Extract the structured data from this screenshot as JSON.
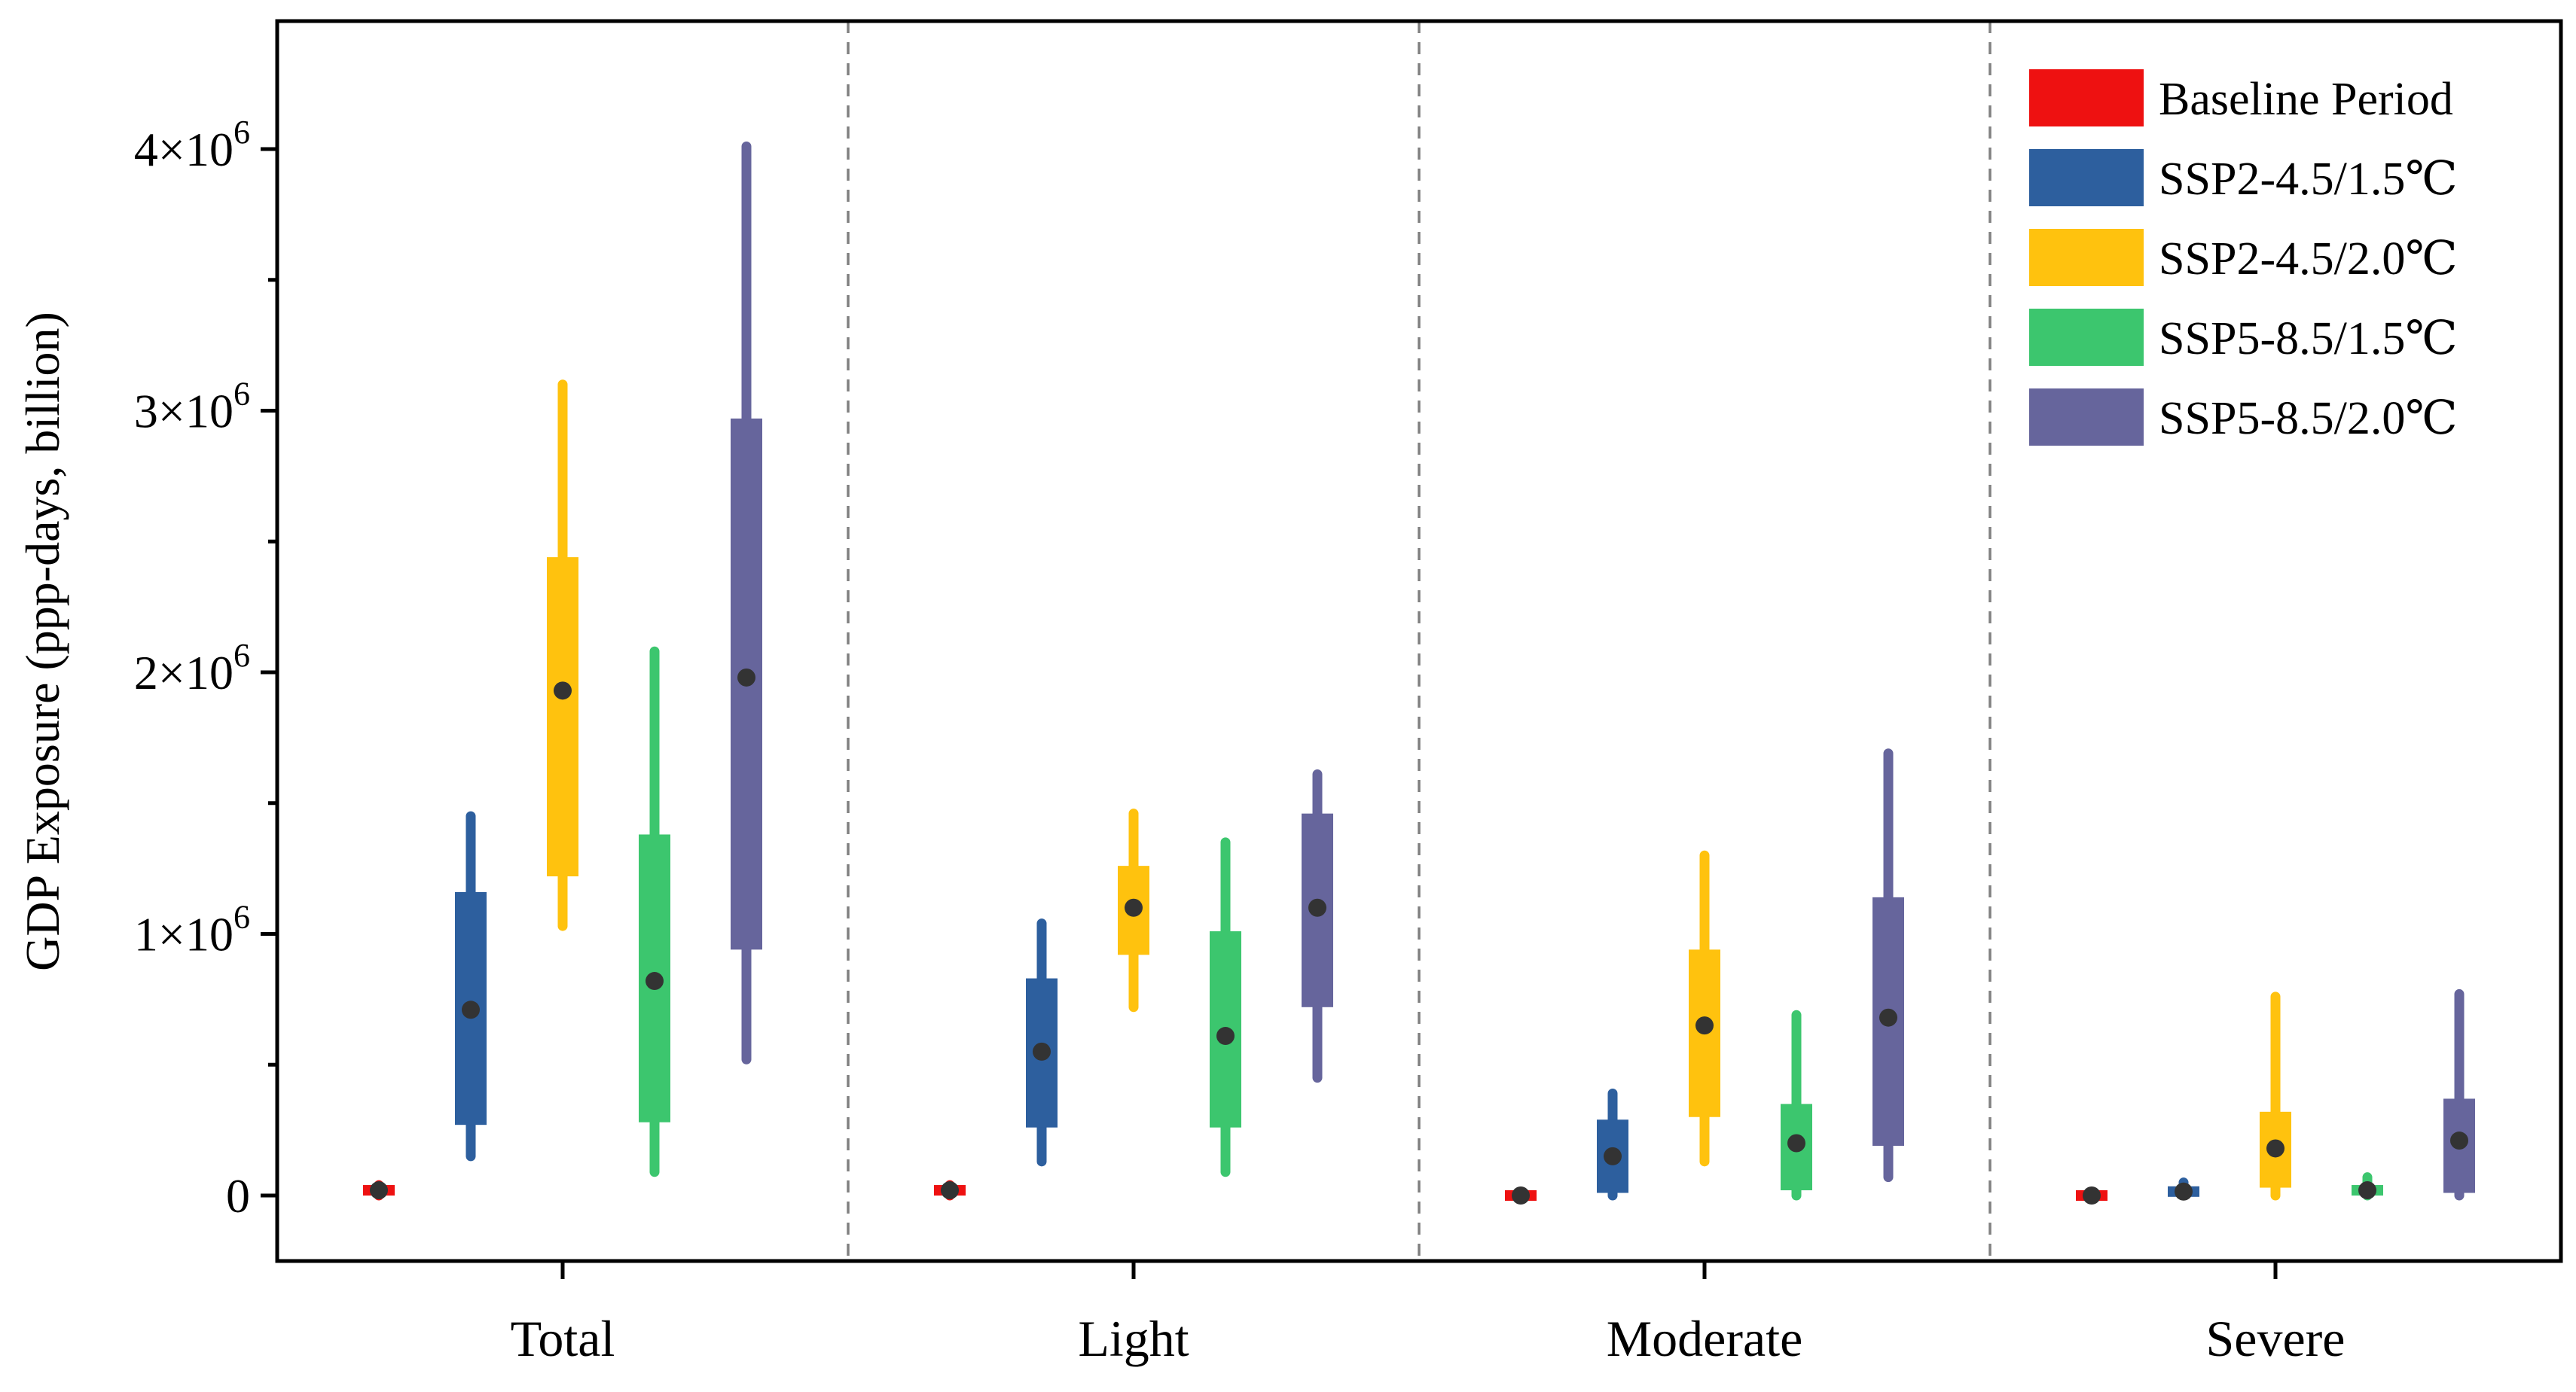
{
  "chart_data": {
    "type": "box",
    "ylabel": "GDP Exposure (ppp-days, billion)",
    "ylim": [
      -250000,
      4500000
    ],
    "yticks": [
      {
        "value": 0,
        "mantissa": "0",
        "exponent": ""
      },
      {
        "value": 1000000,
        "mantissa": "1×10",
        "exponent": "6"
      },
      {
        "value": 2000000,
        "mantissa": "2×10",
        "exponent": "6"
      },
      {
        "value": 3000000,
        "mantissa": "3×10",
        "exponent": "6"
      },
      {
        "value": 4000000,
        "mantissa": "4×10",
        "exponent": "6"
      }
    ],
    "categories": [
      "Total",
      "Light",
      "Moderate",
      "Severe"
    ],
    "legend_position": "top-right",
    "series": [
      {
        "name": "Baseline Period",
        "color": "#ee1111",
        "stats": [
          {
            "min": 0,
            "q1": 0,
            "median": 20000,
            "q3": 40000,
            "max": 40000
          },
          {
            "min": 0,
            "q1": 0,
            "median": 20000,
            "q3": 40000,
            "max": 40000
          },
          {
            "min": -5000,
            "q1": -5000,
            "median": 0,
            "q3": 5000,
            "max": 5000
          },
          {
            "min": -5000,
            "q1": -5000,
            "median": 0,
            "q3": 5000,
            "max": 5000
          }
        ]
      },
      {
        "name": "SSP2-4.5/1.5℃",
        "color": "#2d5f9e",
        "stats": [
          {
            "min": 150000,
            "q1": 270000,
            "median": 710000,
            "q3": 1160000,
            "max": 1450000
          },
          {
            "min": 130000,
            "q1": 260000,
            "median": 550000,
            "q3": 830000,
            "max": 1040000
          },
          {
            "min": 0,
            "q1": 10000,
            "median": 150000,
            "q3": 290000,
            "max": 390000
          },
          {
            "min": 0,
            "q1": 0,
            "median": 15000,
            "q3": 30000,
            "max": 50000
          }
        ]
      },
      {
        "name": "SSP2-4.5/2.0℃",
        "color": "#ffc20e",
        "stats": [
          {
            "min": 1030000,
            "q1": 1220000,
            "median": 1930000,
            "q3": 2440000,
            "max": 3100000
          },
          {
            "min": 720000,
            "q1": 920000,
            "median": 1100000,
            "q3": 1260000,
            "max": 1460000
          },
          {
            "min": 130000,
            "q1": 300000,
            "median": 650000,
            "q3": 940000,
            "max": 1300000
          },
          {
            "min": 0,
            "q1": 30000,
            "median": 180000,
            "q3": 320000,
            "max": 760000
          }
        ]
      },
      {
        "name": "SSP5-8.5/1.5℃",
        "color": "#3cc66e",
        "stats": [
          {
            "min": 90000,
            "q1": 280000,
            "median": 820000,
            "q3": 1380000,
            "max": 2080000
          },
          {
            "min": 90000,
            "q1": 260000,
            "median": 610000,
            "q3": 1010000,
            "max": 1350000
          },
          {
            "min": 0,
            "q1": 20000,
            "median": 200000,
            "q3": 350000,
            "max": 690000
          },
          {
            "min": 0,
            "q1": 0,
            "median": 20000,
            "q3": 40000,
            "max": 70000
          }
        ]
      },
      {
        "name": "SSP5-8.5/2.0℃",
        "color": "#66659c",
        "stats": [
          {
            "min": 520000,
            "q1": 940000,
            "median": 1980000,
            "q3": 2970000,
            "max": 4010000
          },
          {
            "min": 450000,
            "q1": 720000,
            "median": 1100000,
            "q3": 1460000,
            "max": 1610000
          },
          {
            "min": 70000,
            "q1": 190000,
            "median": 680000,
            "q3": 1140000,
            "max": 1690000
          },
          {
            "min": 0,
            "q1": 10000,
            "median": 210000,
            "q3": 370000,
            "max": 770000
          }
        ]
      }
    ]
  }
}
